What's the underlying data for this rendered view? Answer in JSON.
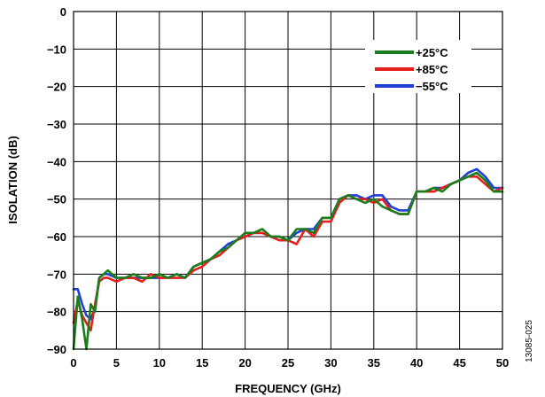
{
  "chart_data": {
    "type": "line",
    "xlabel": "FREQUENCY (GHz)",
    "ylabel": "ISOLATION (dB)",
    "xlim": [
      0,
      50
    ],
    "ylim": [
      -90,
      0
    ],
    "x_ticks": [
      0,
      5,
      10,
      15,
      20,
      25,
      30,
      35,
      40,
      45,
      50
    ],
    "y_ticks": [
      0,
      -10,
      -20,
      -30,
      -40,
      -50,
      -60,
      -70,
      -80,
      -90
    ],
    "y_tick_labels": [
      "0",
      "−10",
      "−20",
      "−30",
      "−40",
      "−50",
      "−60",
      "−70",
      "−80",
      "−90"
    ],
    "grid": true,
    "legend_position": "top-right",
    "series": [
      {
        "name": "+25°C",
        "color": "#1a7f1a",
        "x": [
          0,
          0.5,
          1,
          1.5,
          2,
          2.5,
          3,
          3.5,
          4,
          5,
          6,
          7,
          8,
          9,
          10,
          11,
          12,
          13,
          14,
          15,
          16,
          17,
          18,
          19,
          20,
          21,
          22,
          23,
          24,
          25,
          26,
          27,
          28,
          29,
          30,
          31,
          32,
          33,
          34,
          35,
          36,
          37,
          38,
          39,
          40,
          41,
          42,
          43,
          44,
          45,
          46,
          47,
          48,
          49,
          50
        ],
        "y": [
          -90,
          -76,
          -82,
          -90,
          -78,
          -80,
          -71,
          -70,
          -69,
          -71,
          -71,
          -70,
          -71,
          -71,
          -70,
          -71,
          -70,
          -71,
          -68,
          -67,
          -66,
          -64,
          -63,
          -61,
          -59,
          -59,
          -58,
          -60,
          -60,
          -61,
          -58,
          -58,
          -59,
          -55,
          -55,
          -50,
          -49,
          -50,
          -51,
          -50,
          -52,
          -53,
          -54,
          -54,
          -48,
          -48,
          -47,
          -48,
          -46,
          -45,
          -44,
          -43,
          -45,
          -48,
          -48
        ]
      },
      {
        "name": "+85°C",
        "color": "#e61e1e",
        "x": [
          0,
          0.5,
          1,
          1.5,
          2,
          2.5,
          3,
          3.5,
          4,
          5,
          6,
          7,
          8,
          9,
          10,
          11,
          12,
          13,
          14,
          15,
          16,
          17,
          18,
          19,
          20,
          21,
          22,
          23,
          24,
          25,
          26,
          27,
          28,
          29,
          30,
          31,
          32,
          33,
          34,
          35,
          36,
          37,
          38,
          39,
          40,
          41,
          42,
          43,
          44,
          45,
          46,
          47,
          48,
          49,
          50
        ],
        "y": [
          -83,
          -77,
          -81,
          -83,
          -85,
          -78,
          -72,
          -71,
          -71,
          -72,
          -71,
          -71,
          -72,
          -70,
          -71,
          -71,
          -71,
          -71,
          -69,
          -68,
          -66,
          -65,
          -63,
          -61,
          -60,
          -59,
          -59,
          -60,
          -61,
          -61,
          -62,
          -58,
          -60,
          -56,
          -56,
          -51,
          -49,
          -50,
          -50,
          -51,
          -50,
          -53,
          -54,
          -54,
          -48,
          -48,
          -48,
          -47,
          -46,
          -45,
          -44,
          -44,
          -46,
          -48,
          -47
        ]
      },
      {
        "name": "−55°C",
        "color": "#1f3fd6",
        "x": [
          0,
          0.5,
          1,
          1.5,
          2,
          2.5,
          3,
          3.5,
          4,
          5,
          6,
          7,
          8,
          9,
          10,
          11,
          12,
          13,
          14,
          15,
          16,
          17,
          18,
          19,
          20,
          21,
          22,
          23,
          24,
          25,
          26,
          27,
          28,
          29,
          30,
          31,
          32,
          33,
          34,
          35,
          36,
          37,
          38,
          39,
          40,
          41,
          42,
          43,
          44,
          45,
          46,
          47,
          48,
          49,
          50
        ],
        "y": [
          -74,
          -74,
          -78,
          -81,
          -82,
          -79,
          -71,
          -70,
          -70,
          -71,
          -71,
          -71,
          -71,
          -71,
          -71,
          -71,
          -70,
          -71,
          -68,
          -67,
          -66,
          -64,
          -62,
          -61,
          -60,
          -59,
          -59,
          -60,
          -60,
          -61,
          -59,
          -58,
          -58,
          -55,
          -55,
          -50,
          -49,
          -49,
          -50,
          -49,
          -49,
          -52,
          -53,
          -53,
          -48,
          -48,
          -47,
          -47,
          -46,
          -45,
          -43,
          -42,
          -44,
          -47,
          -47
        ]
      }
    ]
  },
  "figure_id": "13085-025"
}
